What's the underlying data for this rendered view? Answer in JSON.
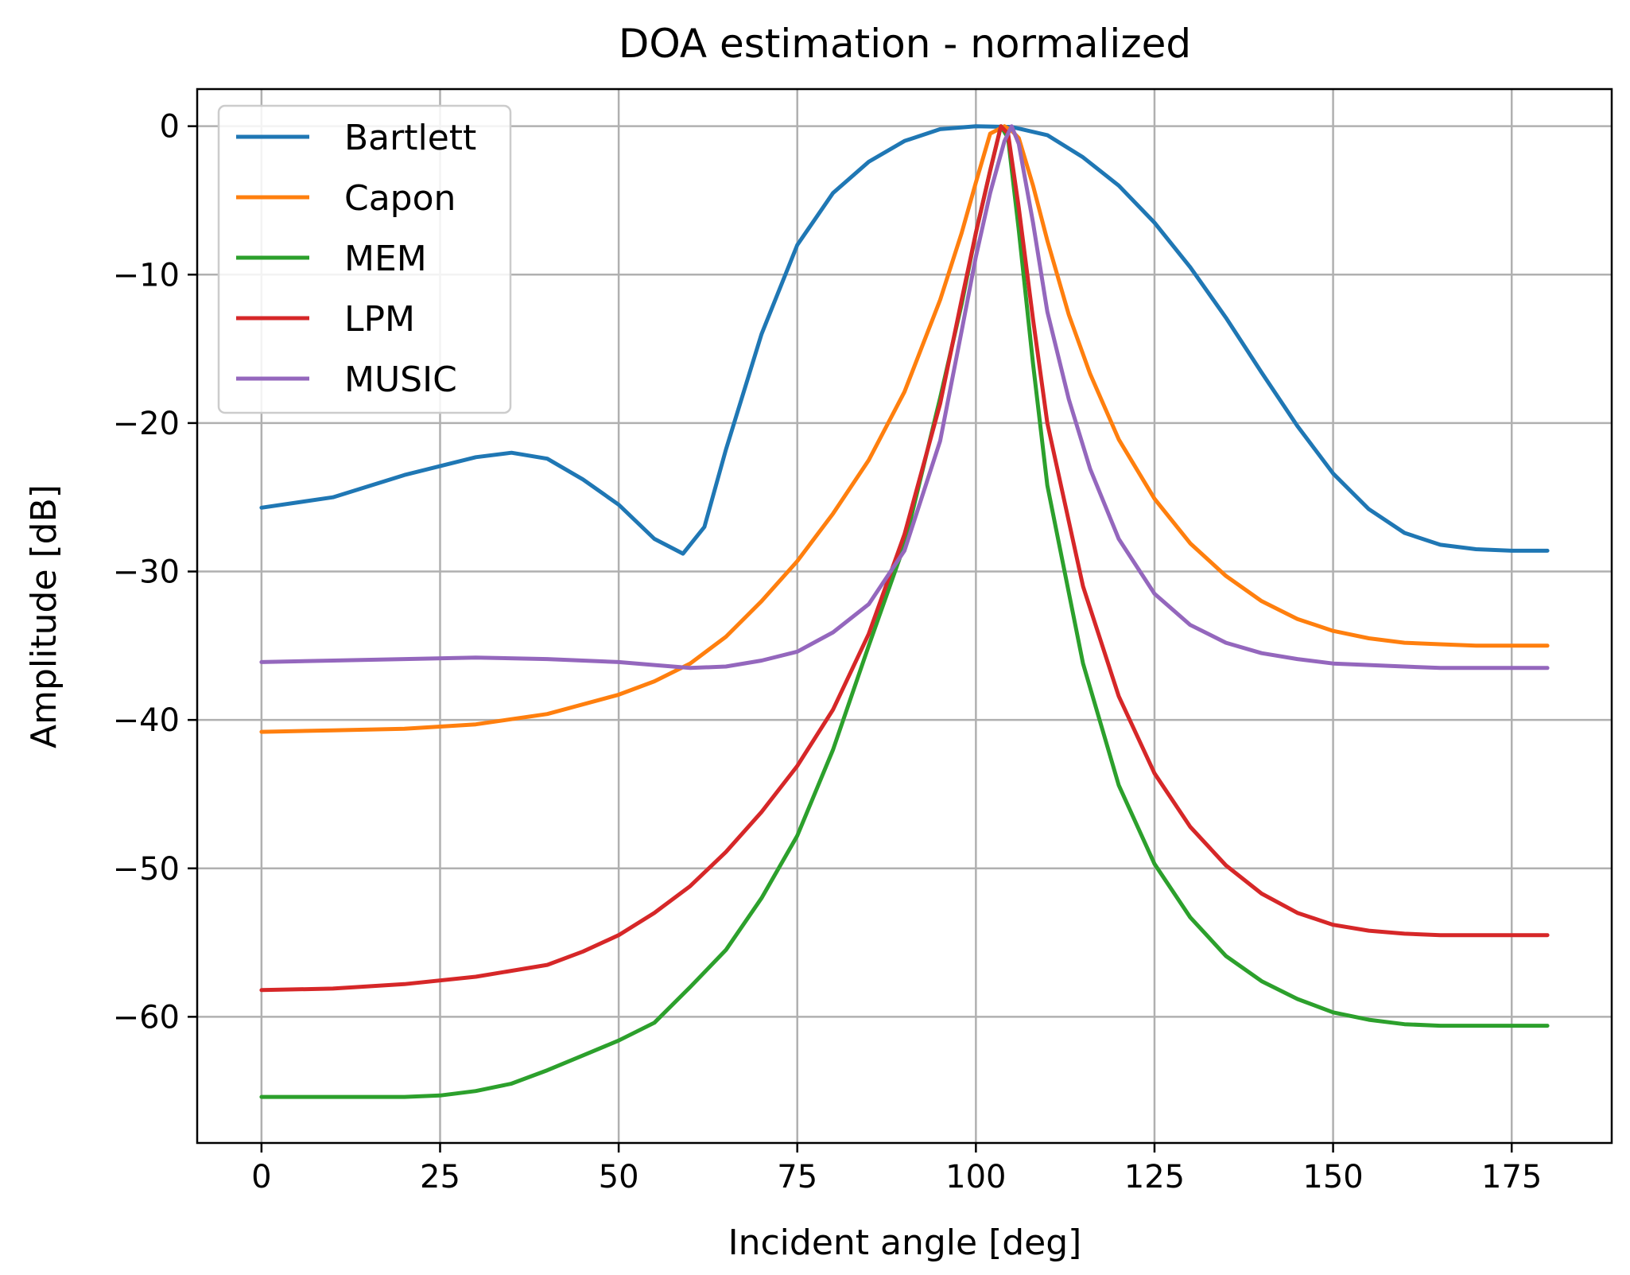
{
  "chart_data": {
    "type": "line",
    "title": "DOA estimation - normalized",
    "xlabel": "Incident angle [deg]",
    "ylabel": "Amplitude [dB]",
    "xlim": [
      -9,
      189
    ],
    "ylim": [
      -68.5,
      2.5
    ],
    "xticks": [
      0,
      25,
      50,
      75,
      100,
      125,
      150,
      175
    ],
    "xtick_labels": [
      "0",
      "25",
      "50",
      "75",
      "100",
      "125",
      "150",
      "175"
    ],
    "yticks": [
      0,
      -10,
      -20,
      -30,
      -40,
      -50,
      -60
    ],
    "ytick_labels": [
      "0",
      "−10",
      "−20",
      "−30",
      "−40",
      "−50",
      "−60"
    ],
    "grid": true,
    "legend_position": "top-left",
    "series": [
      {
        "name": "Bartlett",
        "color": "#1f77b4",
        "x": [
          0,
          10,
          20,
          30,
          35,
          40,
          45,
          50,
          55,
          59,
          62,
          65,
          70,
          75,
          80,
          85,
          90,
          95,
          100,
          105,
          110,
          115,
          120,
          125,
          130,
          135,
          140,
          145,
          150,
          155,
          160,
          165,
          170,
          175,
          180
        ],
        "y": [
          -25.7,
          -25.0,
          -23.5,
          -22.3,
          -22.0,
          -22.4,
          -23.8,
          -25.5,
          -27.8,
          -28.8,
          -27.0,
          -21.8,
          -14.0,
          -8.0,
          -4.5,
          -2.4,
          -1.0,
          -0.2,
          0,
          -0.05,
          -0.6,
          -2.1,
          -4.0,
          -6.5,
          -9.5,
          -12.9,
          -16.6,
          -20.2,
          -23.4,
          -25.8,
          -27.4,
          -28.2,
          -28.5,
          -28.6,
          -28.6
        ]
      },
      {
        "name": "Capon",
        "color": "#ff7f0e",
        "x": [
          0,
          10,
          20,
          30,
          40,
          50,
          55,
          60,
          65,
          70,
          75,
          80,
          85,
          90,
          95,
          98,
          100,
          102,
          104,
          105,
          106,
          108,
          110,
          113,
          116,
          120,
          125,
          130,
          135,
          140,
          145,
          150,
          155,
          160,
          165,
          170,
          175,
          180
        ],
        "y": [
          -40.8,
          -40.7,
          -40.6,
          -40.3,
          -39.6,
          -38.3,
          -37.4,
          -36.2,
          -34.4,
          -32.0,
          -29.3,
          -26.1,
          -22.5,
          -17.9,
          -11.7,
          -7.2,
          -3.8,
          -0.5,
          0,
          -0.3,
          -0.8,
          -4.0,
          -7.7,
          -12.7,
          -16.7,
          -21.1,
          -25.1,
          -28.1,
          -30.3,
          -32.0,
          -33.2,
          -34.0,
          -34.5,
          -34.8,
          -34.9,
          -35.0,
          -35.0,
          -35.0
        ]
      },
      {
        "name": "MEM",
        "color": "#2ca02c",
        "x": [
          0,
          10,
          20,
          25,
          30,
          35,
          40,
          45,
          50,
          55,
          60,
          65,
          70,
          75,
          80,
          85,
          90,
          95,
          98,
          100,
          102,
          103.5,
          104.5,
          106,
          108,
          110,
          115,
          120,
          125,
          130,
          135,
          140,
          145,
          150,
          155,
          160,
          165,
          170,
          175,
          180
        ],
        "y": [
          -65.4,
          -65.4,
          -65.4,
          -65.3,
          -65.0,
          -64.5,
          -63.6,
          -62.6,
          -61.6,
          -60.4,
          -58.0,
          -55.5,
          -52.0,
          -47.8,
          -42.0,
          -35.0,
          -28.2,
          -18.3,
          -12.0,
          -7.2,
          -3.0,
          0,
          -0.8,
          -7.0,
          -16.0,
          -24.2,
          -36.2,
          -44.4,
          -49.7,
          -53.3,
          -55.9,
          -57.6,
          -58.8,
          -59.7,
          -60.2,
          -60.5,
          -60.6,
          -60.6,
          -60.6,
          -60.6
        ]
      },
      {
        "name": "LPM",
        "color": "#d62728",
        "x": [
          0,
          10,
          20,
          30,
          40,
          45,
          50,
          55,
          60,
          65,
          70,
          75,
          80,
          85,
          90,
          95,
          98,
          100,
          102,
          103.5,
          104.5,
          106,
          108,
          110,
          115,
          120,
          125,
          130,
          135,
          140,
          145,
          150,
          155,
          160,
          165,
          170,
          175,
          180
        ],
        "y": [
          -58.2,
          -58.1,
          -57.8,
          -57.3,
          -56.5,
          -55.6,
          -54.5,
          -53.0,
          -51.2,
          -48.9,
          -46.2,
          -43.1,
          -39.3,
          -34.2,
          -27.5,
          -18.7,
          -11.7,
          -7.2,
          -3.0,
          0,
          -0.5,
          -5.5,
          -13.0,
          -20.0,
          -31.0,
          -38.4,
          -43.6,
          -47.2,
          -49.8,
          -51.7,
          -53.0,
          -53.8,
          -54.2,
          -54.4,
          -54.5,
          -54.5,
          -54.5,
          -54.5
        ]
      },
      {
        "name": "MUSIC",
        "color": "#9467bd",
        "x": [
          0,
          10,
          20,
          30,
          40,
          50,
          55,
          60,
          65,
          70,
          75,
          80,
          85,
          90,
          95,
          98,
          100,
          102,
          104,
          105,
          106,
          108,
          110,
          113,
          116,
          120,
          125,
          130,
          135,
          140,
          145,
          150,
          155,
          160,
          165,
          170,
          175,
          180
        ],
        "y": [
          -36.1,
          -36.0,
          -35.9,
          -35.8,
          -35.9,
          -36.1,
          -36.3,
          -36.5,
          -36.4,
          -36.0,
          -35.4,
          -34.1,
          -32.2,
          -28.6,
          -21.2,
          -13.8,
          -8.8,
          -4.5,
          -1.0,
          0,
          -1.2,
          -6.5,
          -12.5,
          -18.4,
          -23.1,
          -27.8,
          -31.5,
          -33.6,
          -34.8,
          -35.5,
          -35.9,
          -36.2,
          -36.3,
          -36.4,
          -36.5,
          -36.5,
          -36.5,
          -36.5
        ]
      }
    ]
  }
}
